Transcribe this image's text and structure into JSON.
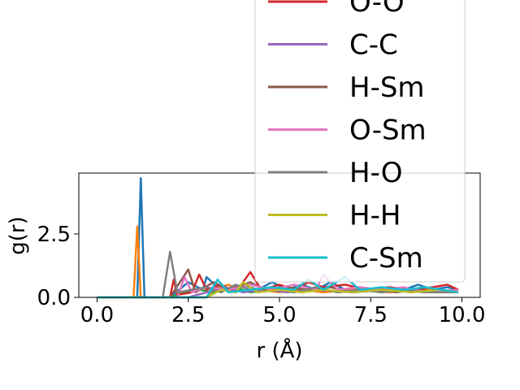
{
  "chart_data": {
    "type": "line",
    "title": "",
    "xlabel": "r (Å)",
    "ylabel": "g(r)",
    "xlim": [
      -0.5,
      10.5
    ],
    "ylim": [
      0.0,
      4.9
    ],
    "xticks": [
      0.0,
      2.5,
      5.0,
      7.5,
      10.0
    ],
    "xtick_labels": [
      "0.0",
      "2.5",
      "5.0",
      "7.5",
      "10.0"
    ],
    "yticks": [
      0.0,
      2.5
    ],
    "ytick_labels": [
      "0.0",
      "2.5"
    ],
    "grid": false,
    "legend_placement": "upper-right",
    "series": [
      {
        "name": "",
        "color": "#1f77b4",
        "points": [
          [
            0,
            0
          ],
          [
            1.1,
            0
          ],
          [
            1.2,
            4.7
          ],
          [
            1.3,
            0
          ],
          [
            2.0,
            0
          ],
          [
            2.5,
            0.6
          ],
          [
            2.9,
            0.3
          ],
          [
            3.0,
            0.8
          ],
          [
            3.3,
            0.4
          ],
          [
            3.6,
            0.3
          ],
          [
            4.0,
            0.5
          ],
          [
            4.4,
            0.3
          ],
          [
            4.8,
            0.6
          ],
          [
            5.2,
            0.3
          ],
          [
            5.6,
            0.5
          ],
          [
            6.0,
            0.3
          ],
          [
            6.4,
            0.6
          ],
          [
            6.8,
            0.3
          ],
          [
            7.2,
            0.4
          ],
          [
            7.6,
            0.3
          ],
          [
            8.0,
            0.4
          ],
          [
            8.4,
            0.3
          ],
          [
            8.8,
            0.5
          ],
          [
            9.2,
            0.3
          ],
          [
            9.6,
            0.4
          ],
          [
            9.9,
            0.3
          ]
        ]
      },
      {
        "name": "",
        "color": "#ff7f0e",
        "points": [
          [
            0,
            0
          ],
          [
            1.0,
            0
          ],
          [
            1.1,
            2.8
          ],
          [
            1.2,
            0
          ],
          [
            3.0,
            0
          ],
          [
            3.2,
            0.3
          ],
          [
            3.6,
            0.5
          ],
          [
            4.0,
            0.2
          ],
          [
            4.4,
            0.3
          ],
          [
            5.0,
            0.2
          ],
          [
            5.6,
            0.3
          ],
          [
            6.2,
            0.2
          ],
          [
            7.0,
            0.3
          ],
          [
            8.0,
            0.2
          ],
          [
            9.0,
            0.3
          ],
          [
            9.9,
            0.2
          ]
        ]
      },
      {
        "name": "",
        "color": "#2ca02c",
        "points": [
          [
            0,
            0
          ],
          [
            2.0,
            0
          ],
          [
            2.4,
            0.2
          ],
          [
            2.8,
            0.3
          ],
          [
            3.2,
            0.2
          ],
          [
            3.8,
            0.4
          ],
          [
            4.2,
            0.2
          ],
          [
            4.8,
            0.3
          ],
          [
            5.4,
            0.2
          ],
          [
            6.0,
            0.4
          ],
          [
            6.6,
            0.2
          ],
          [
            7.2,
            0.3
          ],
          [
            7.8,
            0.2
          ],
          [
            8.4,
            0.3
          ],
          [
            9.0,
            0.2
          ],
          [
            9.9,
            0.3
          ]
        ]
      },
      {
        "name": "O-O",
        "color": "#d62728",
        "points": [
          [
            0,
            0
          ],
          [
            2.0,
            0
          ],
          [
            2.1,
            0.7
          ],
          [
            2.2,
            0.1
          ],
          [
            2.6,
            0.2
          ],
          [
            2.8,
            0.9
          ],
          [
            3.0,
            0.3
          ],
          [
            3.4,
            0.5
          ],
          [
            3.8,
            0.2
          ],
          [
            4.2,
            1.0
          ],
          [
            4.5,
            0.3
          ],
          [
            5.0,
            0.5
          ],
          [
            5.4,
            0.3
          ],
          [
            5.8,
            0.6
          ],
          [
            6.2,
            0.4
          ],
          [
            6.8,
            0.5
          ],
          [
            7.4,
            0.3
          ],
          [
            8.0,
            0.4
          ],
          [
            8.6,
            0.3
          ],
          [
            9.2,
            0.4
          ],
          [
            9.6,
            0.5
          ],
          [
            9.9,
            0.3
          ]
        ]
      },
      {
        "name": "C-C",
        "color": "#9467bd",
        "points": [
          [
            0,
            0
          ],
          [
            2.5,
            0
          ],
          [
            3.0,
            0.2
          ],
          [
            3.5,
            0.4
          ],
          [
            4.0,
            0.2
          ],
          [
            4.6,
            0.3
          ],
          [
            5.2,
            0.2
          ],
          [
            6.0,
            0.3
          ],
          [
            7.0,
            0.2
          ],
          [
            8.0,
            0.3
          ],
          [
            9.0,
            0.2
          ],
          [
            9.9,
            0.2
          ]
        ]
      },
      {
        "name": "H-Sm",
        "color": "#8c564b",
        "points": [
          [
            0,
            0
          ],
          [
            2.0,
            0
          ],
          [
            2.5,
            1.1
          ],
          [
            2.7,
            0.2
          ],
          [
            3.2,
            0.6
          ],
          [
            3.6,
            0.3
          ],
          [
            4.2,
            0.6
          ],
          [
            4.6,
            0.3
          ],
          [
            5.2,
            0.4
          ],
          [
            5.8,
            0.3
          ],
          [
            6.4,
            0.4
          ],
          [
            7.0,
            0.2
          ],
          [
            7.6,
            0.3
          ],
          [
            8.2,
            0.2
          ],
          [
            8.8,
            0.3
          ],
          [
            9.4,
            0.2
          ],
          [
            9.9,
            0.3
          ]
        ]
      },
      {
        "name": "O-Sm",
        "color": "#e377c2",
        "points": [
          [
            0,
            0
          ],
          [
            2.2,
            0
          ],
          [
            2.4,
            0.8
          ],
          [
            2.6,
            0.2
          ],
          [
            3.0,
            0.4
          ],
          [
            3.6,
            0.3
          ],
          [
            4.2,
            0.5
          ],
          [
            4.8,
            0.3
          ],
          [
            5.4,
            0.5
          ],
          [
            6.0,
            0.3
          ],
          [
            6.2,
            0.9
          ],
          [
            6.6,
            0.3
          ],
          [
            7.2,
            0.4
          ],
          [
            7.8,
            0.3
          ],
          [
            8.4,
            0.4
          ],
          [
            9.0,
            0.2
          ],
          [
            9.9,
            0.3
          ]
        ]
      },
      {
        "name": "H-O",
        "color": "#7f7f7f",
        "points": [
          [
            0,
            0
          ],
          [
            1.8,
            0
          ],
          [
            2.0,
            1.8
          ],
          [
            2.2,
            0.2
          ],
          [
            2.6,
            0.3
          ],
          [
            3.0,
            0.4
          ],
          [
            3.4,
            0.2
          ],
          [
            3.8,
            0.5
          ],
          [
            4.2,
            0.3
          ],
          [
            4.8,
            0.4
          ],
          [
            5.4,
            0.2
          ],
          [
            6.0,
            0.4
          ],
          [
            6.6,
            0.2
          ],
          [
            7.2,
            0.3
          ],
          [
            7.8,
            0.2
          ],
          [
            8.4,
            0.3
          ],
          [
            9.0,
            0.2
          ],
          [
            9.9,
            0.2
          ]
        ]
      },
      {
        "name": "H-H",
        "color": "#bcbd22",
        "points": [
          [
            0,
            0
          ],
          [
            3.0,
            0
          ],
          [
            3.4,
            0.3
          ],
          [
            3.8,
            0.2
          ],
          [
            4.0,
            0.6
          ],
          [
            4.4,
            0.2
          ],
          [
            5.0,
            0.3
          ],
          [
            5.6,
            0.2
          ],
          [
            6.2,
            0.3
          ],
          [
            7.0,
            0.2
          ],
          [
            7.8,
            0.3
          ],
          [
            8.6,
            0.2
          ],
          [
            9.4,
            0.3
          ],
          [
            9.9,
            0.2
          ]
        ]
      },
      {
        "name": "C-Sm",
        "color": "#17becf",
        "points": [
          [
            0,
            0
          ],
          [
            3.0,
            0
          ],
          [
            3.3,
            0.7
          ],
          [
            3.6,
            0.2
          ],
          [
            4.2,
            0.3
          ],
          [
            4.8,
            0.4
          ],
          [
            5.4,
            0.3
          ],
          [
            5.8,
            0.7
          ],
          [
            6.2,
            0.3
          ],
          [
            6.8,
            0.8
          ],
          [
            7.2,
            0.3
          ],
          [
            7.8,
            0.4
          ],
          [
            8.4,
            0.3
          ],
          [
            9.0,
            0.4
          ],
          [
            9.9,
            0.2
          ]
        ]
      }
    ]
  }
}
